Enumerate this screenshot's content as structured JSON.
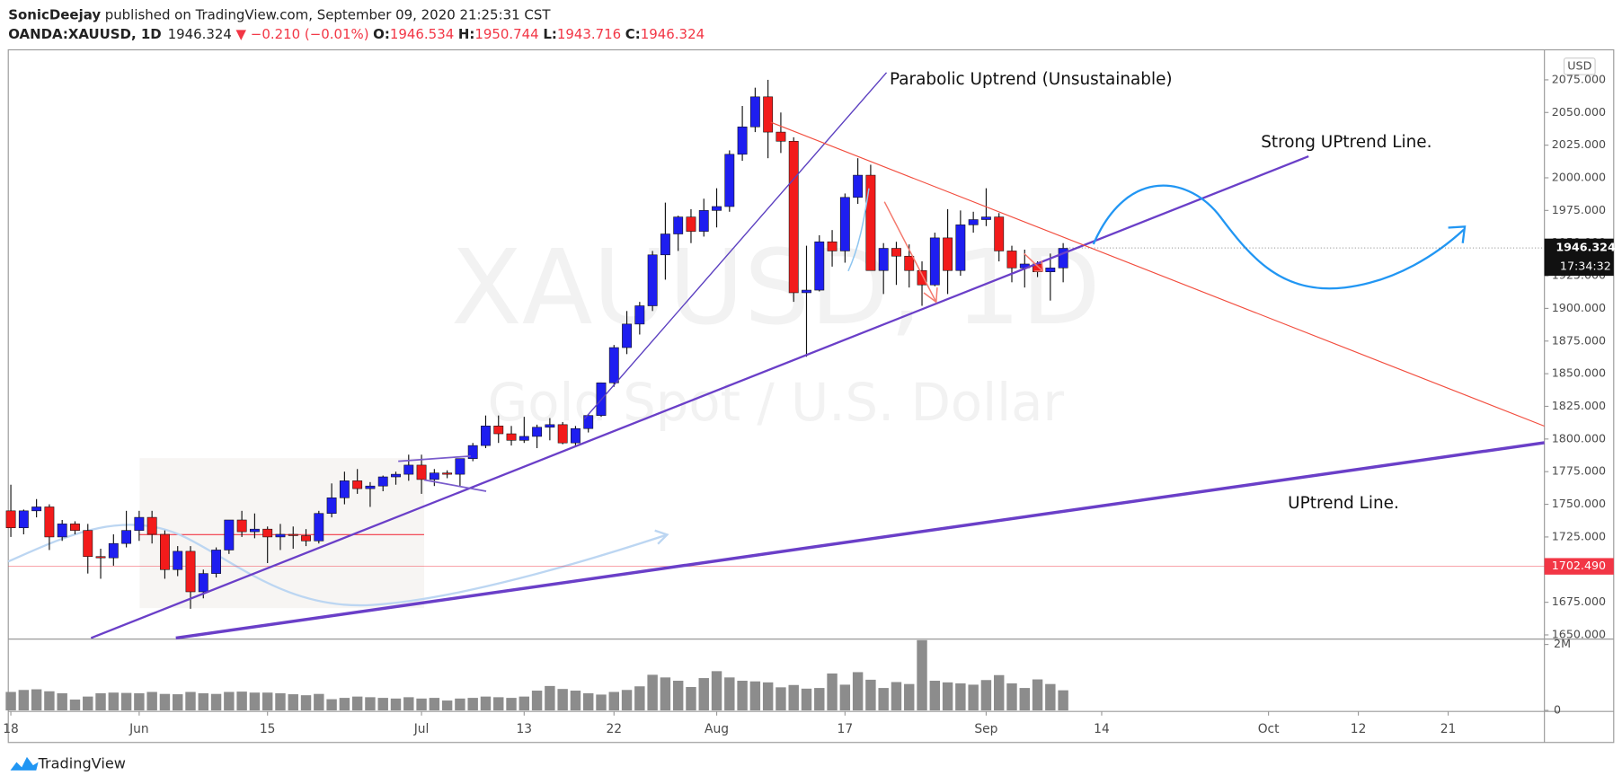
{
  "header": {
    "author": "SonicDeejay",
    "published": "published on TradingView.com, September 09, 2020 21:25:31 CST",
    "symbol": "OANDA:XAUUSD, 1D",
    "price": "1946.324",
    "change": "▼ −0.210 (−0.01%)",
    "ohlc": [
      {
        "label": "O:",
        "value": "1946.534"
      },
      {
        "label": "H:",
        "value": "1950.744"
      },
      {
        "label": "L:",
        "value": "1943.716"
      },
      {
        "label": "C:",
        "value": "1946.324"
      }
    ]
  },
  "watermark": {
    "symbol": "XAUUSD, 1D",
    "description": "Gold Spot / U.S. Dollar"
  },
  "currency": "USD",
  "annotations": [
    "Parabolic Uptrend (Unsustainable)",
    "Strong UPtrend Line.",
    "UPtrend Line."
  ],
  "footer": "TradingView",
  "chart_data": [
    {
      "type": "candlestick",
      "up_color": "#1e1ef0",
      "down_color": "#f21b1b",
      "open": [
        1745,
        1732,
        1745,
        1748,
        1725,
        1735,
        1730,
        1710,
        1709,
        1720,
        1730,
        1740,
        1727,
        1700,
        1714,
        1683,
        1697,
        1715,
        1738,
        1729,
        1731,
        1725,
        1727,
        1726,
        1722,
        1743,
        1755,
        1768,
        1762,
        1764,
        1771,
        1773,
        1780,
        1769,
        1774,
        1773,
        1785,
        1795,
        1810,
        1804,
        1799,
        1802,
        1809,
        1811,
        1797,
        1808,
        1818,
        1843,
        1870,
        1888,
        1902,
        1941,
        1957,
        1970,
        1959,
        1975,
        1978,
        2018,
        2039,
        2062,
        2035,
        2028,
        1912,
        1914,
        1951,
        1944,
        1985,
        2002,
        1929,
        1946,
        1940,
        1929,
        1918,
        1954,
        1929,
        1964,
        1968,
        1970,
        1944,
        1931,
        1934,
        1928,
        1931
      ],
      "high": [
        1765,
        1746,
        1754,
        1750,
        1738,
        1737,
        1735,
        1716,
        1727,
        1745,
        1745,
        1745,
        1730,
        1718,
        1718,
        1700,
        1717,
        1738,
        1745,
        1743,
        1733,
        1735,
        1733,
        1731,
        1745,
        1766,
        1775,
        1777,
        1767,
        1772,
        1775,
        1788,
        1788,
        1777,
        1776,
        1785,
        1797,
        1818,
        1818,
        1810,
        1817,
        1811,
        1816,
        1813,
        1810,
        1819,
        1843,
        1872,
        1898,
        1905,
        1944,
        1981,
        1971,
        1976,
        1984,
        1992,
        2021,
        2055,
        2069,
        2075,
        2050,
        2031,
        1948,
        1956,
        1960,
        1988,
        2015,
        2010,
        1950,
        1951,
        1949,
        1936,
        1958,
        1976,
        1975,
        1974,
        1992,
        1973,
        1948,
        1945,
        1936,
        1942,
        1950
      ],
      "low": [
        1725,
        1727,
        1740,
        1715,
        1722,
        1727,
        1697,
        1693,
        1703,
        1717,
        1722,
        1720,
        1693,
        1695,
        1670,
        1678,
        1694,
        1712,
        1725,
        1724,
        1705,
        1715,
        1716,
        1718,
        1720,
        1740,
        1750,
        1758,
        1748,
        1760,
        1765,
        1768,
        1758,
        1764,
        1770,
        1764,
        1783,
        1793,
        1797,
        1795,
        1797,
        1793,
        1799,
        1796,
        1795,
        1805,
        1817,
        1840,
        1865,
        1880,
        1898,
        1922,
        1944,
        1950,
        1955,
        1962,
        1974,
        2013,
        2035,
        2015,
        2019,
        1905,
        1863,
        1913,
        1932,
        1935,
        1980,
        1929,
        1911,
        1918,
        1916,
        1902,
        1917,
        1911,
        1925,
        1958,
        1963,
        1936,
        1920,
        1916,
        1924,
        1906,
        1920
      ],
      "close": [
        1732,
        1745,
        1748,
        1725,
        1735,
        1730,
        1710,
        1709,
        1720,
        1730,
        1740,
        1727,
        1700,
        1714,
        1683,
        1697,
        1715,
        1738,
        1729,
        1731,
        1725,
        1727,
        1726,
        1722,
        1743,
        1755,
        1768,
        1762,
        1764,
        1771,
        1773,
        1780,
        1769,
        1774,
        1773,
        1785,
        1795,
        1810,
        1804,
        1799,
        1802,
        1809,
        1811,
        1797,
        1808,
        1818,
        1843,
        1870,
        1888,
        1902,
        1941,
        1957,
        1970,
        1959,
        1975,
        1978,
        2018,
        2039,
        2062,
        2035,
        2028,
        1912,
        1914,
        1951,
        1944,
        1985,
        2002,
        1929,
        1946,
        1940,
        1929,
        1918,
        1954,
        1929,
        1964,
        1968,
        1970,
        1944,
        1931,
        1934,
        1928,
        1931,
        1946
      ],
      "xlim": [
        -0.2,
        119.5
      ],
      "xticks": [
        {
          "value": 0,
          "label": "18"
        },
        {
          "value": 10,
          "label": "Jun"
        },
        {
          "value": 20,
          "label": "15"
        },
        {
          "value": 32,
          "label": "Jul"
        },
        {
          "value": 40,
          "label": "13"
        },
        {
          "value": 47,
          "label": "22"
        },
        {
          "value": 55,
          "label": "Aug"
        },
        {
          "value": 65,
          "label": "17"
        },
        {
          "value": 76,
          "label": "Sep"
        },
        {
          "value": 85,
          "label": "14"
        },
        {
          "value": 98,
          "label": "Oct"
        },
        {
          "value": 105,
          "label": "12"
        },
        {
          "value": 112,
          "label": "21"
        }
      ],
      "ylim": [
        1647.6,
        2098
      ],
      "yticks": [
        {
          "value": 1650,
          "label": "1650.000"
        },
        {
          "value": 1675,
          "label": "1675.000"
        },
        {
          "value": 1700,
          "label": "1700.000"
        },
        {
          "value": 1725,
          "label": "1725.000"
        },
        {
          "value": 1750,
          "label": "1750.000"
        },
        {
          "value": 1775,
          "label": "1775.000"
        },
        {
          "value": 1800,
          "label": "1800.000"
        },
        {
          "value": 1825,
          "label": "1825.000"
        },
        {
          "value": 1850,
          "label": "1850.000"
        },
        {
          "value": 1875,
          "label": "1875.000"
        },
        {
          "value": 1900,
          "label": "1900.000"
        },
        {
          "value": 1925,
          "label": "1925.000"
        },
        {
          "value": 1950,
          "label": "1950.000"
        },
        {
          "value": 1975,
          "label": "1975.000"
        },
        {
          "value": 2000,
          "label": "2000.000"
        },
        {
          "value": 2025,
          "label": "2025.000"
        },
        {
          "value": 2050,
          "label": "2050.000"
        },
        {
          "value": 2075,
          "label": "2075.000"
        }
      ],
      "last_price": {
        "value": 1946.324,
        "label": "1946.324",
        "countdown": "17:34:32"
      },
      "level": {
        "value": 1702.49,
        "label": "1702.490",
        "color": "#f23645"
      }
    },
    {
      "type": "bar",
      "color": "#8c8c8c",
      "values": [
        560000,
        620000,
        640000,
        580000,
        520000,
        330000,
        420000,
        520000,
        540000,
        530000,
        520000,
        560000,
        500000,
        490000,
        560000,
        520000,
        500000,
        560000,
        570000,
        540000,
        540000,
        520000,
        490000,
        460000,
        500000,
        340000,
        380000,
        420000,
        400000,
        380000,
        360000,
        400000,
        360000,
        380000,
        300000,
        360000,
        380000,
        420000,
        400000,
        380000,
        420000,
        600000,
        740000,
        650000,
        600000,
        520000,
        480000,
        560000,
        620000,
        730000,
        1080000,
        1000000,
        900000,
        710000,
        980000,
        1190000,
        1000000,
        900000,
        880000,
        850000,
        700000,
        770000,
        660000,
        680000,
        1120000,
        780000,
        1160000,
        930000,
        680000,
        860000,
        800000,
        2130000,
        900000,
        850000,
        820000,
        780000,
        920000,
        1070000,
        820000,
        680000,
        940000,
        800000,
        610000
      ],
      "ylim": [
        0,
        2100000
      ],
      "yticks": [
        {
          "value": 0,
          "label": "0"
        },
        {
          "value": 2000000,
          "label": "2M"
        }
      ]
    }
  ]
}
